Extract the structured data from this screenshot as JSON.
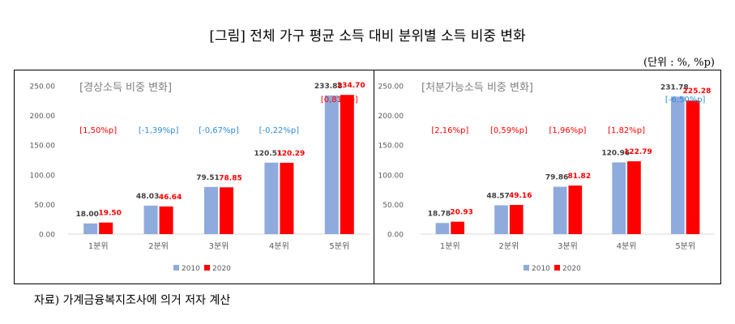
{
  "title": "[그림] 전체 가구 평균 소득 대비 분위별 소득 비중 변화",
  "unit": "(단위 : %, %p)",
  "source": "자료) 가계금융복지조사에 의거 저자 계산",
  "colors": {
    "s2010": "#8faadc",
    "s2020": "#ff0000",
    "pos": "#ff0000",
    "neg": "#2e8bd9",
    "axis": "#595959"
  },
  "chart_data": [
    {
      "type": "bar",
      "title": "[경상소득 비중 변화]",
      "categories": [
        "1분위",
        "2분위",
        "3분위",
        "4분위",
        "5분위"
      ],
      "series": [
        {
          "name": "2010",
          "values": [
            18.0,
            48.03,
            79.51,
            120.51,
            233.88
          ]
        },
        {
          "name": "2020",
          "values": [
            19.5,
            46.64,
            78.85,
            120.29,
            234.7
          ]
        }
      ],
      "value_labels": {
        "2010": [
          "18.00",
          "48.03",
          "79.51",
          "120.51",
          "233.88"
        ],
        "2020": [
          "19.50",
          "46.64",
          "78.85",
          "120.29",
          "234.70"
        ]
      },
      "change_labels": [
        "[1,50%p]",
        "[-1,39%p]",
        "[-0,67%p]",
        "[-0,22%p]",
        "[0,81%p]"
      ],
      "change_sign": [
        "pos",
        "neg",
        "neg",
        "neg",
        "pos"
      ],
      "yticks": [
        "0.00",
        "50.00",
        "100.00",
        "150.00",
        "200.00",
        "250.00"
      ],
      "ylim": [
        0,
        250
      ],
      "grid": false,
      "legend": "bottom"
    },
    {
      "type": "bar",
      "title": "[처분가능소득 비중 변화]",
      "categories": [
        "1분위",
        "2분위",
        "3분위",
        "4분위",
        "5분위"
      ],
      "series": [
        {
          "name": "2010",
          "values": [
            18.78,
            48.57,
            79.86,
            120.96,
            231.78
          ]
        },
        {
          "name": "2020",
          "values": [
            20.93,
            49.16,
            81.82,
            122.79,
            225.28
          ]
        }
      ],
      "value_labels": {
        "2010": [
          "18.78",
          "48.57",
          "79.86",
          "120.96",
          "231.78"
        ],
        "2020": [
          "20.93",
          "49.16",
          "81.82",
          "122.79",
          "225.28"
        ]
      },
      "change_labels": [
        "[2,16%p]",
        "[0,59%p]",
        "[1,96%p]",
        "[1,82%p]",
        "[-6,50%p]"
      ],
      "change_sign": [
        "pos",
        "pos",
        "pos",
        "pos",
        "neg"
      ],
      "yticks": [
        "0.00",
        "50.00",
        "100.00",
        "150.00",
        "200.00",
        "250.00"
      ],
      "ylim": [
        0,
        250
      ],
      "grid": false,
      "legend": "bottom"
    }
  ]
}
